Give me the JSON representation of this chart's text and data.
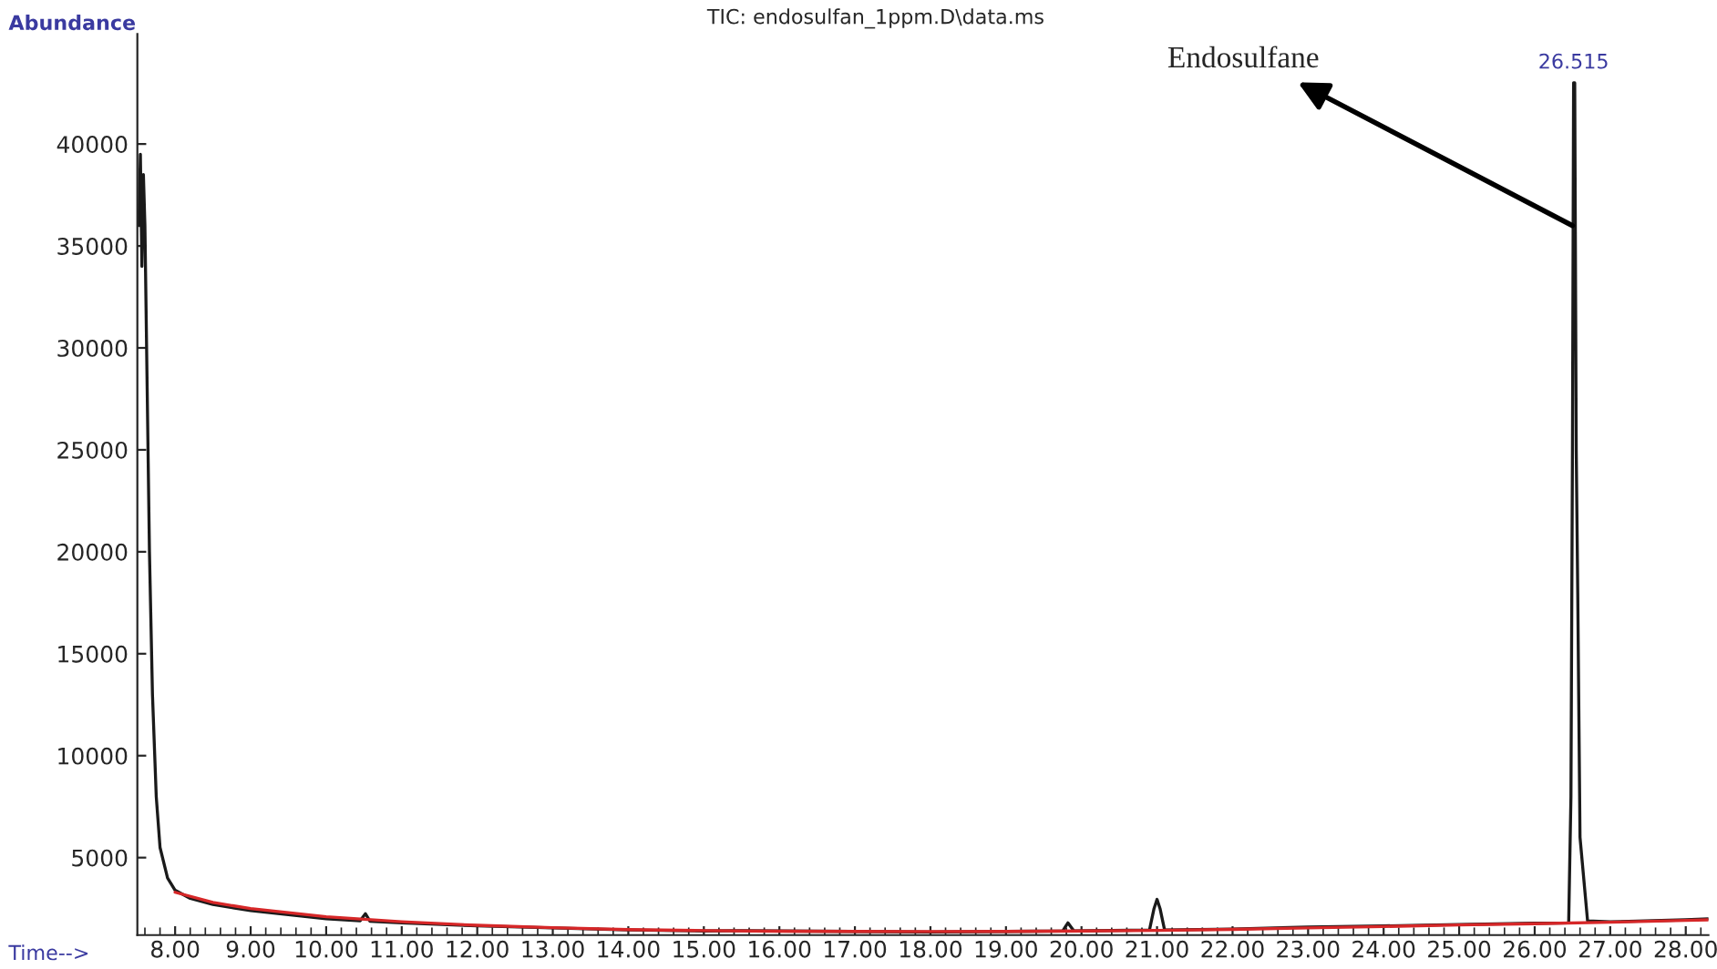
{
  "chart_data": {
    "type": "line",
    "title": "TIC: endosulfan_1ppm.D\\data.ms",
    "xlabel": "Time-->",
    "ylabel": "Abundance",
    "series": [
      {
        "color": "#1a1a1a",
        "x": [
          7.52,
          7.54,
          7.56,
          7.58,
          7.6,
          7.63,
          7.66,
          7.7,
          7.75,
          7.8,
          7.9,
          8.0,
          8.2,
          8.5,
          9.0,
          9.5,
          10.0,
          10.45,
          10.52,
          10.58,
          11.0,
          12.0,
          13.0,
          14.0,
          15.0,
          15.5,
          16.0,
          17.0,
          18.0,
          19.0,
          19.75,
          19.82,
          19.9,
          20.9,
          20.96,
          21.0,
          21.04,
          21.1,
          22.0,
          23.0,
          24.0,
          25.0,
          26.0,
          26.45,
          26.48,
          26.5,
          26.515,
          26.53,
          26.55,
          26.57,
          26.6,
          26.7,
          27.0,
          28.0,
          28.3
        ],
        "values": [
          36000,
          39500,
          34000,
          38500,
          36000,
          28000,
          20000,
          13000,
          8000,
          5500,
          4000,
          3400,
          3000,
          2700,
          2400,
          2200,
          2000,
          1900,
          2250,
          1880,
          1800,
          1650,
          1550,
          1450,
          1400,
          1420,
          1400,
          1380,
          1350,
          1380,
          1400,
          1800,
          1400,
          1450,
          2500,
          2950,
          2500,
          1450,
          1500,
          1600,
          1650,
          1720,
          1780,
          1800,
          8000,
          25000,
          43000,
          43000,
          25000,
          18000,
          6000,
          1900,
          1850,
          1950,
          2000
        ]
      },
      {
        "color": "#d62728",
        "x": [
          8.0,
          8.5,
          9.0,
          10.0,
          11.0,
          12.0,
          13.0,
          14.0,
          15.0,
          16.0,
          17.0,
          18.0,
          19.0,
          20.0,
          21.0,
          22.0,
          23.0,
          24.0,
          25.0,
          26.0,
          27.0,
          28.0,
          28.3
        ],
        "values": [
          3300,
          2800,
          2500,
          2100,
          1850,
          1680,
          1560,
          1470,
          1420,
          1390,
          1380,
          1370,
          1380,
          1400,
          1430,
          1480,
          1550,
          1620,
          1700,
          1760,
          1830,
          1920,
          1950
        ]
      }
    ],
    "xlim": [
      7.5,
      28.3
    ],
    "ylim": [
      1200,
      45400
    ],
    "xticks": [
      {
        "value": 8,
        "label": "8.00"
      },
      {
        "value": 9,
        "label": "9.00"
      },
      {
        "value": 10,
        "label": "10.00"
      },
      {
        "value": 11,
        "label": "11.00"
      },
      {
        "value": 12,
        "label": "12.00"
      },
      {
        "value": 13,
        "label": "13.00"
      },
      {
        "value": 14,
        "label": "14.00"
      },
      {
        "value": 15,
        "label": "15.00"
      },
      {
        "value": 16,
        "label": "16.00"
      },
      {
        "value": 17,
        "label": "17.00"
      },
      {
        "value": 18,
        "label": "18.00"
      },
      {
        "value": 19,
        "label": "19.00"
      },
      {
        "value": 20,
        "label": "20.00"
      },
      {
        "value": 21,
        "label": "21.00"
      },
      {
        "value": 22,
        "label": "22.00"
      },
      {
        "value": 23,
        "label": "23.00"
      },
      {
        "value": 24,
        "label": "24.00"
      },
      {
        "value": 25,
        "label": "25.00"
      },
      {
        "value": 26,
        "label": "26.00"
      },
      {
        "value": 27,
        "label": "27.00"
      },
      {
        "value": 28,
        "label": "28.00"
      }
    ],
    "yticks": [
      5000,
      10000,
      15000,
      20000,
      25000,
      30000,
      35000,
      40000
    ],
    "annotations": [
      {
        "text": "26.515",
        "x": 26.515,
        "y": 43000
      },
      {
        "text": "Endosulfane",
        "x": 26.5,
        "y": 36000
      }
    ],
    "grid": false,
    "legend": false,
    "marker": "none",
    "line_style": "solid"
  }
}
